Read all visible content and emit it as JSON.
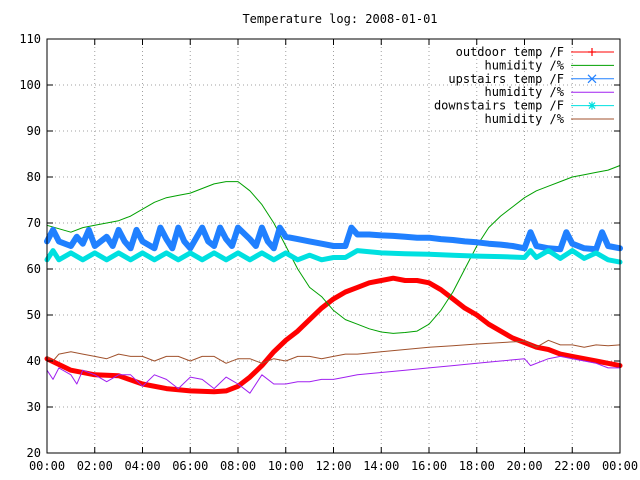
{
  "chart_data": {
    "type": "line",
    "title": "Temperature log: 2008-01-01",
    "xlabel": "",
    "ylabel": "",
    "x_range": [
      "00:00",
      "24:00"
    ],
    "ylim": [
      20,
      110
    ],
    "grid": true,
    "legend_position": "top-right",
    "x_tick_labels": [
      "00:00",
      "02:00",
      "04:00",
      "06:00",
      "08:00",
      "10:00",
      "12:00",
      "14:00",
      "16:00",
      "18:00",
      "20:00",
      "22:00",
      "00:00"
    ],
    "y_tick_labels": [
      "20",
      "30",
      "40",
      "50",
      "60",
      "70",
      "80",
      "90",
      "100",
      "110"
    ],
    "x_unit": "hours",
    "series": [
      {
        "name": "outdoor temp /F",
        "color": "#ff0000",
        "marker": "plus",
        "x": [
          0,
          1,
          2,
          3,
          4,
          5,
          6,
          7,
          7.5,
          8,
          8.5,
          9,
          9.5,
          10,
          10.5,
          11,
          11.5,
          12,
          12.5,
          13,
          13.5,
          14,
          14.5,
          15,
          15.5,
          16,
          16.5,
          17,
          17.5,
          18,
          18.5,
          19,
          19.5,
          20,
          20.5,
          21,
          21.5,
          22,
          22.5,
          23,
          23.5,
          24
        ],
        "y": [
          40.5,
          38,
          37,
          36.8,
          35,
          34,
          33.5,
          33.3,
          33.5,
          34.5,
          36.5,
          39,
          42,
          44.5,
          46.5,
          49,
          51.5,
          53.5,
          55,
          56,
          57,
          57.5,
          58,
          57.5,
          57.5,
          57,
          55.5,
          53.5,
          51.5,
          50,
          48,
          46.5,
          45,
          44,
          43,
          42.5,
          41.5,
          41,
          40.5,
          40,
          39.5,
          39
        ]
      },
      {
        "name": "humidity /%",
        "color": "#00a000",
        "marker": "none",
        "x": [
          0,
          1,
          1.5,
          2,
          2.5,
          3,
          3.5,
          4,
          4.5,
          5,
          5.5,
          6,
          6.5,
          7,
          7.5,
          8,
          8.5,
          9,
          9.5,
          10,
          10.5,
          11,
          11.5,
          12,
          12.5,
          13,
          13.5,
          14,
          14.5,
          15,
          15.5,
          16,
          16.5,
          17,
          17.5,
          18,
          18.5,
          19,
          19.5,
          20,
          20.5,
          21,
          21.5,
          22,
          22.5,
          23,
          23.5,
          24
        ],
        "y": [
          69.5,
          68,
          69,
          69.5,
          70,
          70.5,
          71.5,
          73,
          74.5,
          75.5,
          76,
          76.5,
          77.5,
          78.5,
          79,
          79,
          77,
          74,
          70,
          65,
          60,
          56,
          54,
          51,
          49,
          48,
          47,
          46.3,
          46,
          46.2,
          46.5,
          48,
          51,
          55,
          60,
          65,
          69,
          71.5,
          73.5,
          75.5,
          77,
          78,
          79,
          80,
          80.5,
          81,
          81.5,
          82.5
        ]
      },
      {
        "name": "upstairs temp /F",
        "color": "#2080ff",
        "marker": "x",
        "x": [
          0,
          0.25,
          0.5,
          1,
          1.25,
          1.5,
          1.75,
          2,
          2.5,
          2.75,
          3,
          3.25,
          3.5,
          3.75,
          4,
          4.5,
          4.75,
          5,
          5.25,
          5.5,
          5.75,
          6,
          6.5,
          6.75,
          7,
          7.25,
          7.5,
          7.75,
          8,
          8.5,
          8.75,
          9,
          9.25,
          9.5,
          9.75,
          10,
          10.5,
          11,
          11.5,
          12,
          12.5,
          12.75,
          13,
          13.5,
          14,
          14.5,
          15,
          15.5,
          16,
          16.5,
          17,
          17.5,
          18,
          18.5,
          19,
          19.5,
          20,
          20.25,
          20.5,
          21,
          21.5,
          21.75,
          22,
          22.5,
          23,
          23.25,
          23.5,
          24
        ],
        "y": [
          66,
          68.5,
          66,
          65,
          67,
          65.5,
          68.5,
          65,
          67,
          65,
          68.5,
          66,
          64.5,
          68.5,
          66,
          64.5,
          69,
          66.5,
          64.5,
          69,
          66,
          64.5,
          69,
          66,
          65,
          69,
          66.5,
          65,
          69,
          66.5,
          65,
          69,
          66,
          64.5,
          69,
          67,
          66.5,
          66,
          65.5,
          65,
          65,
          69,
          67.5,
          67.5,
          67.3,
          67.2,
          67,
          66.8,
          66.8,
          66.5,
          66.3,
          66,
          65.8,
          65.5,
          65.3,
          65,
          64.5,
          68,
          65,
          64.5,
          64.3,
          68,
          65.5,
          64.5,
          64.3,
          68,
          65,
          64.5
        ]
      },
      {
        "name": "humidity /%",
        "color": "#a020f0",
        "marker": "none",
        "x": [
          0,
          0.25,
          0.5,
          1,
          1.25,
          1.5,
          2,
          2.5,
          3,
          3.5,
          4,
          4.5,
          5,
          5.5,
          6,
          6.5,
          7,
          7.5,
          8,
          8.5,
          9,
          9.5,
          10,
          10.5,
          11,
          11.5,
          12,
          12.5,
          13,
          14,
          15,
          16,
          17,
          18,
          19,
          20,
          20.25,
          21,
          21.5,
          22,
          22.5,
          23,
          23.5,
          24
        ],
        "y": [
          38,
          36,
          38.5,
          37,
          35,
          38,
          37,
          35.5,
          37,
          37,
          34.5,
          37,
          36,
          34,
          36.5,
          36,
          34,
          36.5,
          35,
          33,
          37,
          35,
          35,
          35.5,
          35.5,
          36,
          36,
          36.5,
          37,
          37.5,
          38,
          38.5,
          39,
          39.5,
          40,
          40.5,
          39,
          40.5,
          41,
          40.5,
          40,
          39.5,
          38.5,
          38.5
        ]
      },
      {
        "name": "downstairs temp /F",
        "color": "#00e0e0",
        "marker": "star",
        "x": [
          0,
          0.25,
          0.5,
          1,
          1.5,
          2,
          2.5,
          3,
          3.5,
          4,
          4.5,
          5,
          5.5,
          6,
          6.5,
          7,
          7.5,
          8,
          8.5,
          9,
          9.5,
          10,
          10.5,
          11,
          11.5,
          12,
          12.5,
          13,
          14,
          15,
          16,
          17,
          18,
          19,
          20,
          20.25,
          20.5,
          21,
          21.5,
          22,
          22.5,
          23,
          23.5,
          24
        ],
        "y": [
          62,
          64,
          62,
          63.5,
          62,
          63.5,
          62,
          63.5,
          62,
          63.5,
          62,
          63.5,
          62,
          63.5,
          62,
          63.5,
          62,
          63.5,
          62,
          63.5,
          62,
          63.5,
          62,
          63,
          62,
          62.5,
          62.5,
          64,
          63.5,
          63.3,
          63.2,
          63,
          62.8,
          62.7,
          62.5,
          64,
          62.5,
          64,
          62.3,
          64,
          62.3,
          63.5,
          62,
          61.5
        ]
      },
      {
        "name": "humidity /%",
        "color": "#a0522d",
        "marker": "none",
        "x": [
          0,
          0.25,
          0.5,
          1,
          1.5,
          2,
          2.5,
          3,
          3.5,
          4,
          4.5,
          5,
          5.5,
          6,
          6.5,
          7,
          7.5,
          8,
          8.5,
          9,
          9.5,
          10,
          10.5,
          11,
          11.5,
          12,
          12.5,
          13,
          14,
          15,
          16,
          17,
          18,
          19,
          20,
          20.5,
          21,
          21.5,
          22,
          22.5,
          23,
          23.5,
          24
        ],
        "y": [
          41,
          40,
          41.5,
          42,
          41.5,
          41,
          40.5,
          41.5,
          41,
          41,
          40,
          41,
          41,
          40,
          41,
          41,
          39.5,
          40.5,
          40.5,
          39.5,
          40.5,
          40,
          41,
          41,
          40.5,
          41,
          41.5,
          41.5,
          42,
          42.5,
          43,
          43.3,
          43.7,
          44,
          44.3,
          43,
          44.5,
          43.5,
          43.5,
          43,
          43.5,
          43.3,
          43.5
        ]
      }
    ]
  }
}
